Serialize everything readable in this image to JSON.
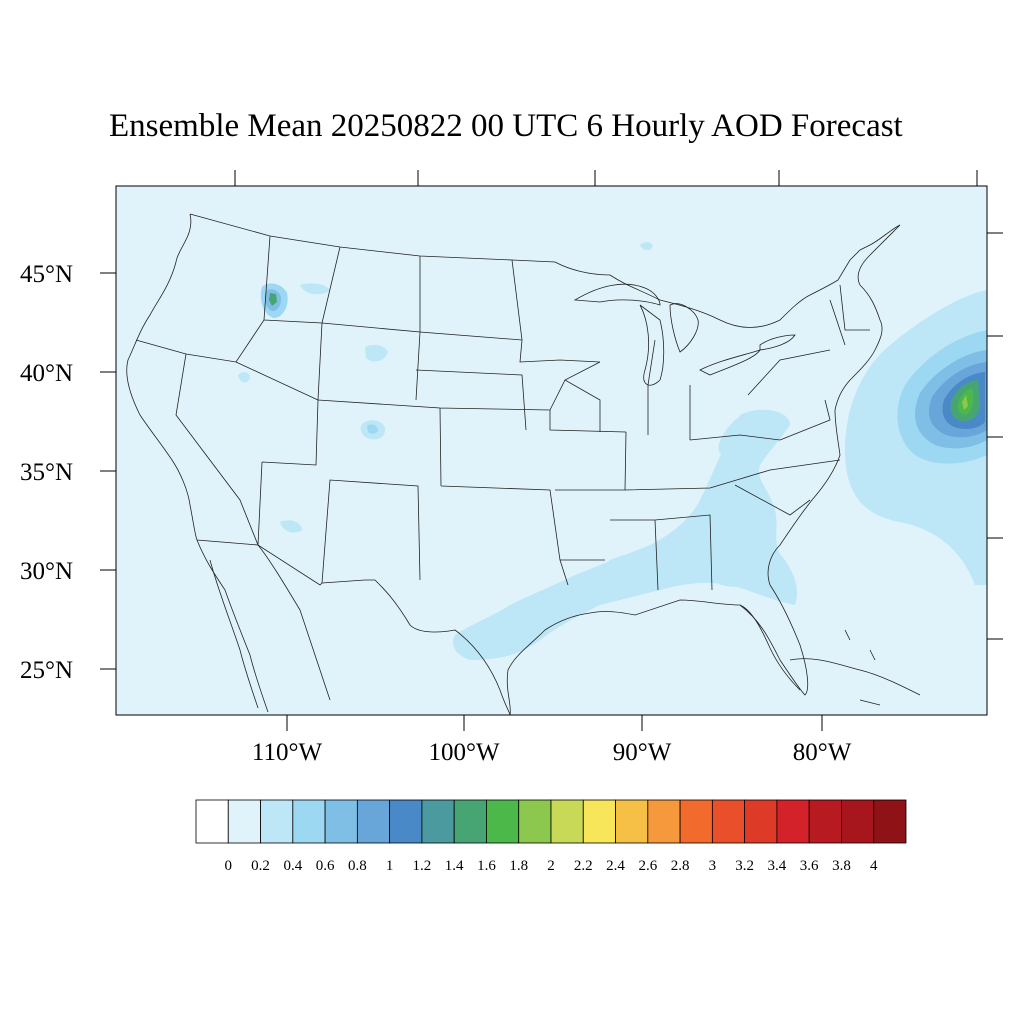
{
  "title": "Ensemble Mean 20250822 00 UTC 6 Hourly AOD Forecast",
  "map": {
    "lat_labels": [
      "45°N",
      "40°N",
      "35°N",
      "30°N",
      "25°N"
    ],
    "lon_labels": [
      "110°W",
      "100°W",
      "90°W",
      "80°W"
    ],
    "lon_range": [
      -119,
      -71
    ],
    "lat_range": [
      22.5,
      49.5
    ]
  },
  "colorbar": {
    "labels": [
      "0",
      "0.2",
      "0.4",
      "0.6",
      "0.8",
      "1",
      "1.2",
      "1.4",
      "1.6",
      "1.8",
      "2",
      "2.2",
      "2.4",
      "2.6",
      "2.8",
      "3",
      "3.2",
      "3.4",
      "3.6",
      "3.8",
      "4"
    ],
    "colors": [
      "#ffffff",
      "#e0f3fb",
      "#bde6f7",
      "#9dd8f3",
      "#7fbfe6",
      "#68a6da",
      "#4a89c8",
      "#4a9aa0",
      "#46a573",
      "#4cb84a",
      "#8bc84d",
      "#c7d957",
      "#f7e65a",
      "#f6c046",
      "#f6993c",
      "#f36b2c",
      "#e84f2a",
      "#de3a28",
      "#d3222a",
      "#b81a22",
      "#a8161d",
      "#8e1216"
    ]
  }
}
